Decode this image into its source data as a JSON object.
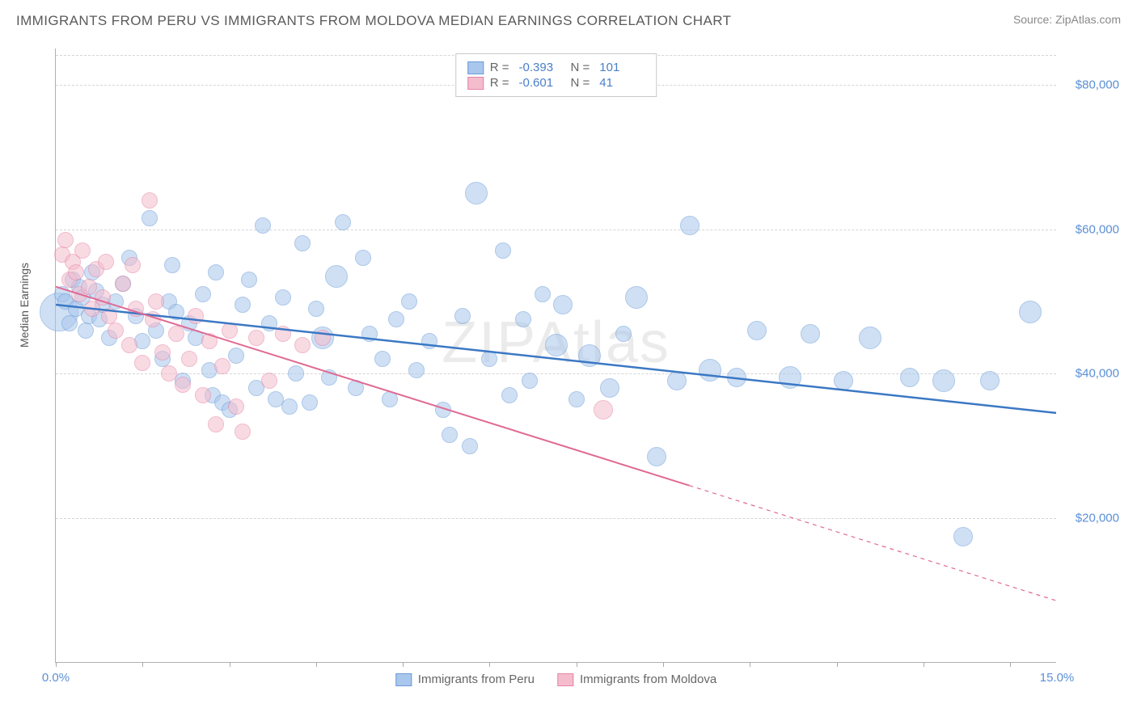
{
  "title": "IMMIGRANTS FROM PERU VS IMMIGRANTS FROM MOLDOVA MEDIAN EARNINGS CORRELATION CHART",
  "source": "Source: ZipAtlas.com",
  "watermark": "ZIPAtlas",
  "ylabel": "Median Earnings",
  "chart": {
    "type": "scatter",
    "xlim": [
      0,
      15
    ],
    "ylim": [
      0,
      85000
    ],
    "xtick_positions": [
      0,
      1.3,
      2.6,
      3.9,
      5.2,
      6.5,
      7.8,
      9.1,
      10.4,
      11.7,
      13,
      14.3
    ],
    "xtick_labels": {
      "0": "0.0%",
      "15": "15.0%"
    },
    "yticks": [
      20000,
      40000,
      60000,
      80000
    ],
    "ytick_labels": [
      "$20,000",
      "$40,000",
      "$60,000",
      "$80,000"
    ],
    "grid_color": "#d5d5d5",
    "background_color": "#ffffff",
    "axis_color": "#b0b0b0",
    "label_color": "#5b8fd6",
    "label_fontsize": 15
  },
  "series": [
    {
      "name": "Immigrants from Peru",
      "key": "peru",
      "color_fill": "#a9c7ec",
      "color_stroke": "#6a9bd8",
      "fill_opacity": 0.55,
      "marker_radius": 10,
      "R": "-0.393",
      "N": "101",
      "trend": {
        "y_at_x0": 49500,
        "y_at_x15": 34500,
        "color": "#3b78c4",
        "width": 2.5,
        "solid_until_x": 15
      },
      "points": [
        [
          0.05,
          48500,
          24
        ],
        [
          0.1,
          51000
        ],
        [
          0.15,
          50000
        ],
        [
          0.2,
          47000
        ],
        [
          0.25,
          53000
        ],
        [
          0.3,
          49000
        ],
        [
          0.35,
          52000
        ],
        [
          0.4,
          50500
        ],
        [
          0.45,
          46000
        ],
        [
          0.5,
          48000
        ],
        [
          0.55,
          54000
        ],
        [
          0.6,
          51500
        ],
        [
          0.65,
          47500
        ],
        [
          0.7,
          49500
        ],
        [
          0.8,
          45000
        ],
        [
          0.9,
          50000
        ],
        [
          1.0,
          52500
        ],
        [
          1.1,
          56000
        ],
        [
          1.2,
          48000
        ],
        [
          1.3,
          44500
        ],
        [
          1.4,
          61500
        ],
        [
          1.5,
          46000
        ],
        [
          1.6,
          42000
        ],
        [
          1.7,
          50000
        ],
        [
          1.75,
          55000
        ],
        [
          1.8,
          48500
        ],
        [
          1.9,
          39000
        ],
        [
          2.0,
          47000
        ],
        [
          2.1,
          45000
        ],
        [
          2.2,
          51000
        ],
        [
          2.3,
          40500
        ],
        [
          2.35,
          37000
        ],
        [
          2.4,
          54000
        ],
        [
          2.5,
          36000
        ],
        [
          2.6,
          35000
        ],
        [
          2.7,
          42500
        ],
        [
          2.8,
          49500
        ],
        [
          2.9,
          53000
        ],
        [
          3.0,
          38000
        ],
        [
          3.1,
          60500
        ],
        [
          3.2,
          47000
        ],
        [
          3.3,
          36500
        ],
        [
          3.4,
          50500
        ],
        [
          3.5,
          35500
        ],
        [
          3.6,
          40000
        ],
        [
          3.7,
          58000
        ],
        [
          3.8,
          36000
        ],
        [
          3.9,
          49000
        ],
        [
          4.0,
          45000,
          14
        ],
        [
          4.1,
          39500
        ],
        [
          4.2,
          53500,
          14
        ],
        [
          4.3,
          61000
        ],
        [
          4.5,
          38000
        ],
        [
          4.6,
          56000
        ],
        [
          4.7,
          45500
        ],
        [
          4.9,
          42000
        ],
        [
          5.0,
          36500
        ],
        [
          5.1,
          47500
        ],
        [
          5.3,
          50000
        ],
        [
          5.4,
          40500
        ],
        [
          5.6,
          44500
        ],
        [
          5.8,
          35000
        ],
        [
          5.9,
          31500
        ],
        [
          6.1,
          48000
        ],
        [
          6.2,
          30000
        ],
        [
          6.3,
          65000,
          14
        ],
        [
          6.5,
          42000
        ],
        [
          6.7,
          57000
        ],
        [
          6.8,
          37000
        ],
        [
          7.0,
          47500
        ],
        [
          7.1,
          39000
        ],
        [
          7.3,
          51000
        ],
        [
          7.5,
          44000,
          14
        ],
        [
          7.6,
          49500,
          12
        ],
        [
          7.8,
          36500
        ],
        [
          8.0,
          42500,
          14
        ],
        [
          8.3,
          38000,
          12
        ],
        [
          8.5,
          45500
        ],
        [
          8.7,
          50500,
          14
        ],
        [
          9.0,
          28500,
          12
        ],
        [
          9.3,
          39000,
          12
        ],
        [
          9.5,
          60500,
          12
        ],
        [
          9.8,
          40500,
          14
        ],
        [
          10.2,
          39500,
          12
        ],
        [
          10.5,
          46000,
          12
        ],
        [
          11.0,
          39500,
          14
        ],
        [
          11.3,
          45500,
          12
        ],
        [
          11.8,
          39000,
          12
        ],
        [
          12.2,
          45000,
          14
        ],
        [
          12.8,
          39500,
          12
        ],
        [
          13.3,
          39000,
          14
        ],
        [
          13.6,
          17500,
          12
        ],
        [
          14.0,
          39000,
          12
        ],
        [
          14.6,
          48500,
          14
        ]
      ]
    },
    {
      "name": "Immigrants from Moldova",
      "key": "moldova",
      "color_fill": "#f4bccd",
      "color_stroke": "#e785a6",
      "fill_opacity": 0.55,
      "marker_radius": 10,
      "R": "-0.601",
      "N": "41",
      "trend": {
        "y_at_x0": 52000,
        "y_at_x15": 8500,
        "color": "#e06a94",
        "width": 2,
        "solid_until_x": 9.5
      },
      "points": [
        [
          0.1,
          56500
        ],
        [
          0.15,
          58500
        ],
        [
          0.2,
          53000
        ],
        [
          0.25,
          55500
        ],
        [
          0.3,
          54000
        ],
        [
          0.35,
          51000
        ],
        [
          0.4,
          57000
        ],
        [
          0.5,
          52000
        ],
        [
          0.55,
          49000
        ],
        [
          0.6,
          54500
        ],
        [
          0.7,
          50500
        ],
        [
          0.75,
          55500
        ],
        [
          0.8,
          48000
        ],
        [
          0.9,
          46000
        ],
        [
          1.0,
          52500
        ],
        [
          1.1,
          44000
        ],
        [
          1.15,
          55000
        ],
        [
          1.2,
          49000
        ],
        [
          1.3,
          41500
        ],
        [
          1.4,
          64000
        ],
        [
          1.45,
          47500
        ],
        [
          1.5,
          50000
        ],
        [
          1.6,
          43000
        ],
        [
          1.7,
          40000
        ],
        [
          1.8,
          45500
        ],
        [
          1.9,
          38500
        ],
        [
          2.0,
          42000
        ],
        [
          2.1,
          48000
        ],
        [
          2.2,
          37000
        ],
        [
          2.3,
          44500
        ],
        [
          2.4,
          33000
        ],
        [
          2.5,
          41000
        ],
        [
          2.6,
          46000
        ],
        [
          2.7,
          35500
        ],
        [
          2.8,
          32000
        ],
        [
          3.0,
          45000
        ],
        [
          3.2,
          39000
        ],
        [
          3.4,
          45500
        ],
        [
          3.7,
          44000
        ],
        [
          4.0,
          45000
        ],
        [
          8.2,
          35000,
          12
        ]
      ]
    }
  ],
  "legend_bottom": [
    {
      "key": "peru",
      "label": "Immigrants from Peru"
    },
    {
      "key": "moldova",
      "label": "Immigrants from Moldova"
    }
  ]
}
